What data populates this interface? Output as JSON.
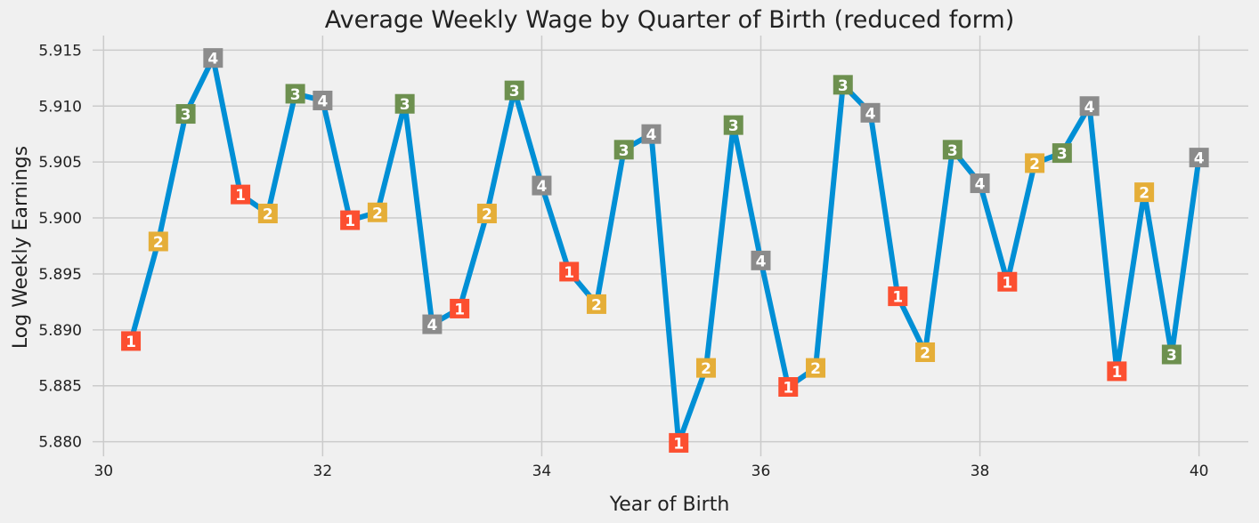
{
  "chart_data": {
    "type": "line",
    "title": "Average Weekly Wage by Quarter of Birth (reduced form)",
    "xlabel": "Year of Birth",
    "ylabel": "Log Weekly Earnings",
    "xlim": [
      29.9,
      40.45
    ],
    "ylim": [
      5.8787,
      5.9163
    ],
    "x_ticks": [
      30,
      32,
      34,
      36,
      38,
      40
    ],
    "x_tick_labels": [
      "30",
      "32",
      "34",
      "36",
      "38",
      "40"
    ],
    "y_ticks": [
      5.88,
      5.885,
      5.89,
      5.895,
      5.9,
      5.905,
      5.91,
      5.915
    ],
    "y_tick_labels": [
      "5.880",
      "5.885",
      "5.890",
      "5.895",
      "5.900",
      "5.905",
      "5.910",
      "5.915"
    ],
    "grid": true,
    "line_color": "#008fd5",
    "quarter_colors": {
      "1": "#fc4f30",
      "2": "#e5ae38",
      "3": "#6d904f",
      "4": "#8b8b8b"
    },
    "points": [
      {
        "x": 30.25,
        "y": 5.889,
        "quarter": "1"
      },
      {
        "x": 30.5,
        "y": 5.8979,
        "quarter": "2"
      },
      {
        "x": 30.75,
        "y": 5.9093,
        "quarter": "3"
      },
      {
        "x": 31.0,
        "y": 5.9143,
        "quarter": "4"
      },
      {
        "x": 31.25,
        "y": 5.9021,
        "quarter": "1"
      },
      {
        "x": 31.5,
        "y": 5.9004,
        "quarter": "2"
      },
      {
        "x": 31.75,
        "y": 5.9111,
        "quarter": "3"
      },
      {
        "x": 32.0,
        "y": 5.9105,
        "quarter": "4"
      },
      {
        "x": 32.25,
        "y": 5.8998,
        "quarter": "1"
      },
      {
        "x": 32.5,
        "y": 5.9005,
        "quarter": "2"
      },
      {
        "x": 32.75,
        "y": 5.9102,
        "quarter": "3"
      },
      {
        "x": 33.0,
        "y": 5.8905,
        "quarter": "4"
      },
      {
        "x": 33.25,
        "y": 5.8919,
        "quarter": "1"
      },
      {
        "x": 33.5,
        "y": 5.9004,
        "quarter": "2"
      },
      {
        "x": 33.75,
        "y": 5.9114,
        "quarter": "3"
      },
      {
        "x": 34.0,
        "y": 5.9029,
        "quarter": "4"
      },
      {
        "x": 34.25,
        "y": 5.8952,
        "quarter": "1"
      },
      {
        "x": 34.5,
        "y": 5.8923,
        "quarter": "2"
      },
      {
        "x": 34.75,
        "y": 5.9061,
        "quarter": "3"
      },
      {
        "x": 35.0,
        "y": 5.9075,
        "quarter": "4"
      },
      {
        "x": 35.25,
        "y": 5.8799,
        "quarter": "1"
      },
      {
        "x": 35.5,
        "y": 5.8866,
        "quarter": "2"
      },
      {
        "x": 35.75,
        "y": 5.9083,
        "quarter": "3"
      },
      {
        "x": 36.0,
        "y": 5.8962,
        "quarter": "4"
      },
      {
        "x": 36.25,
        "y": 5.8849,
        "quarter": "1"
      },
      {
        "x": 36.5,
        "y": 5.8866,
        "quarter": "2"
      },
      {
        "x": 36.75,
        "y": 5.9119,
        "quarter": "3"
      },
      {
        "x": 37.0,
        "y": 5.9094,
        "quarter": "4"
      },
      {
        "x": 37.25,
        "y": 5.893,
        "quarter": "1"
      },
      {
        "x": 37.5,
        "y": 5.888,
        "quarter": "2"
      },
      {
        "x": 37.75,
        "y": 5.9061,
        "quarter": "3"
      },
      {
        "x": 38.0,
        "y": 5.9031,
        "quarter": "4"
      },
      {
        "x": 38.25,
        "y": 5.8943,
        "quarter": "1"
      },
      {
        "x": 38.5,
        "y": 5.9049,
        "quarter": "2"
      },
      {
        "x": 38.75,
        "y": 5.9058,
        "quarter": "3"
      },
      {
        "x": 39.0,
        "y": 5.91,
        "quarter": "4"
      },
      {
        "x": 39.25,
        "y": 5.8863,
        "quarter": "1"
      },
      {
        "x": 39.5,
        "y": 5.9023,
        "quarter": "2"
      },
      {
        "x": 39.75,
        "y": 5.8878,
        "quarter": "3"
      },
      {
        "x": 40.0,
        "y": 5.9054,
        "quarter": "4"
      }
    ]
  }
}
